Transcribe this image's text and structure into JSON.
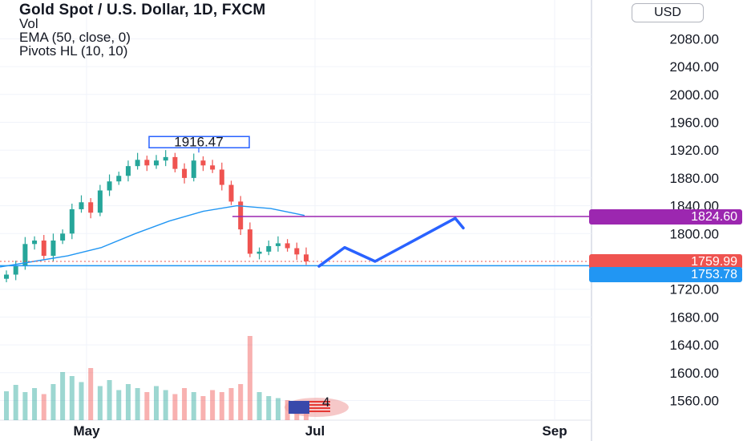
{
  "header": {
    "title": "Gold Spot / U.S. Dollar, 1D, FXCM",
    "indicators": [
      "Vol",
      "EMA (50, close, 0)",
      "Pivots HL (10, 10)"
    ]
  },
  "currency_button": {
    "label": "USD"
  },
  "price_tags": {
    "target": {
      "value": "1824.60",
      "color": "#9c27b0"
    },
    "last": {
      "value": "1759.99",
      "color": "#ef5350"
    },
    "support": {
      "value": "1753.78",
      "color": "#2196f3"
    }
  },
  "pivot_label": "1916.47",
  "volume_badge": "4",
  "colors": {
    "up": "#26a69a",
    "down": "#ef5350",
    "ema": "#2196f3",
    "projection": "#2962ff",
    "target_line": "#9c27b0"
  },
  "chart_data": {
    "type": "candlestick",
    "title": "Gold Spot / U.S. Dollar, 1D, FXCM",
    "y_ticks": [
      "2080.00",
      "2040.00",
      "2000.00",
      "1960.00",
      "1920.00",
      "1880.00",
      "1840.00",
      "1800.00",
      "1720.00",
      "1680.00",
      "1640.00",
      "1600.00",
      "1560.00"
    ],
    "ylim": [
      1540,
      2120
    ],
    "x_ticks": [
      "May",
      "Jul",
      "Sep"
    ],
    "price_points": [
      1741,
      1753,
      1785,
      1790,
      1768,
      1790,
      1800,
      1835,
      1845,
      1830,
      1862,
      1875,
      1883,
      1897,
      1906,
      1898,
      1905,
      1910,
      1893,
      1880,
      1905,
      1898,
      1892,
      1870,
      1846,
      1806,
      1771,
      1774,
      1782,
      1786,
      1779,
      1770,
      1760
    ],
    "ema_points": [
      1752,
      1760,
      1768,
      1780,
      1800,
      1818,
      1832,
      1840,
      1836,
      1826
    ],
    "volume": [
      72,
      88,
      70,
      80,
      65,
      90,
      120,
      110,
      95,
      130,
      85,
      100,
      75,
      90,
      80,
      70,
      85,
      75,
      65,
      80,
      70,
      60,
      75,
      70,
      80,
      90,
      210,
      70,
      60,
      55,
      50,
      45,
      40
    ],
    "projection_points": [
      1753,
      1780,
      1760,
      1822,
      1808
    ],
    "pivot_high": 1916.47,
    "horizontal_levels": [
      1824.6,
      1759.99,
      1753.78
    ]
  }
}
